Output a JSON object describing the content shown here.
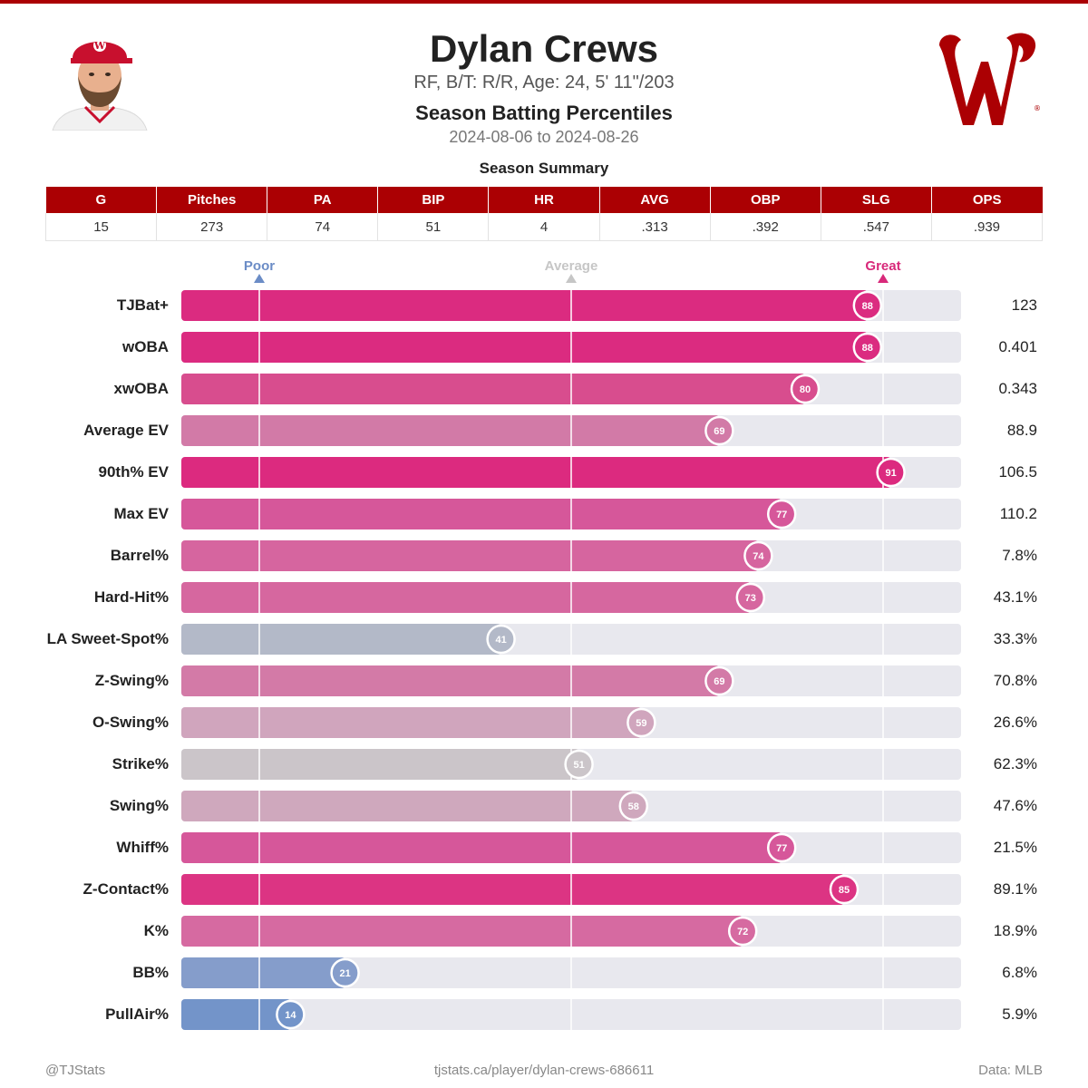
{
  "header": {
    "name": "Dylan Crews",
    "info": "RF, B/T: R/R, Age: 24, 5' 11\"/203",
    "subtitle": "Season Batting Percentiles",
    "date_range": "2024-08-06 to 2024-08-26"
  },
  "summary": {
    "title": "Season Summary",
    "headers": [
      "G",
      "Pitches",
      "PA",
      "BIP",
      "HR",
      "AVG",
      "OBP",
      "SLG",
      "OPS"
    ],
    "values": [
      "15",
      "273",
      "74",
      "51",
      "4",
      ".313",
      ".392",
      ".547",
      ".939"
    ]
  },
  "scale": {
    "poor": {
      "label": "Poor",
      "percentile": 10,
      "color": "#6b8cc6"
    },
    "average": {
      "label": "Average",
      "percentile": 50,
      "color": "#c6c6c6"
    },
    "great": {
      "label": "Great",
      "percentile": 90,
      "color": "#d8297a"
    }
  },
  "colors": {
    "brand": "#ab0003",
    "track": "#e8e8ee",
    "great": "#dc2a7f",
    "average": "#c9c5c9",
    "poor": "#7394c9"
  },
  "chart_data": {
    "type": "bar",
    "orientation": "horizontal",
    "xlim": [
      0,
      100
    ],
    "reference_lines": [
      10,
      50,
      90
    ],
    "categories": [
      "TJBat+",
      "wOBA",
      "xwOBA",
      "Average EV",
      "90th% EV",
      "Max EV",
      "Barrel%",
      "Hard-Hit%",
      "LA Sweet-Spot%",
      "Z-Swing%",
      "O-Swing%",
      "Strike%",
      "Swing%",
      "Whiff%",
      "Z-Contact%",
      "K%",
      "BB%",
      "PullAir%"
    ],
    "percentiles": [
      88,
      88,
      80,
      69,
      91,
      77,
      74,
      73,
      41,
      69,
      59,
      51,
      58,
      77,
      85,
      72,
      21,
      14
    ],
    "stat_values": [
      "123",
      "0.401",
      "0.343",
      "88.9",
      "106.5",
      "110.2",
      "7.8%",
      "43.1%",
      "33.3%",
      "70.8%",
      "26.6%",
      "62.3%",
      "47.6%",
      "21.5%",
      "89.1%",
      "18.9%",
      "6.8%",
      "5.9%"
    ],
    "bar_colors": [
      "#db2b80",
      "#db2b80",
      "#d84d8e",
      "#d27aa7",
      "#dc2a7f",
      "#d6579a",
      "#d6659f",
      "#d6679f",
      "#b3b9c8",
      "#d37aa7",
      "#d0a5bd",
      "#cbc5c9",
      "#cfa8bd",
      "#d6579a",
      "#dc3483",
      "#d66aa1",
      "#859dcb",
      "#7394c9"
    ]
  },
  "footer": {
    "left": "@TJStats",
    "center": "tjstats.ca/player/dylan-crews-686611",
    "right": "Data: MLB"
  }
}
